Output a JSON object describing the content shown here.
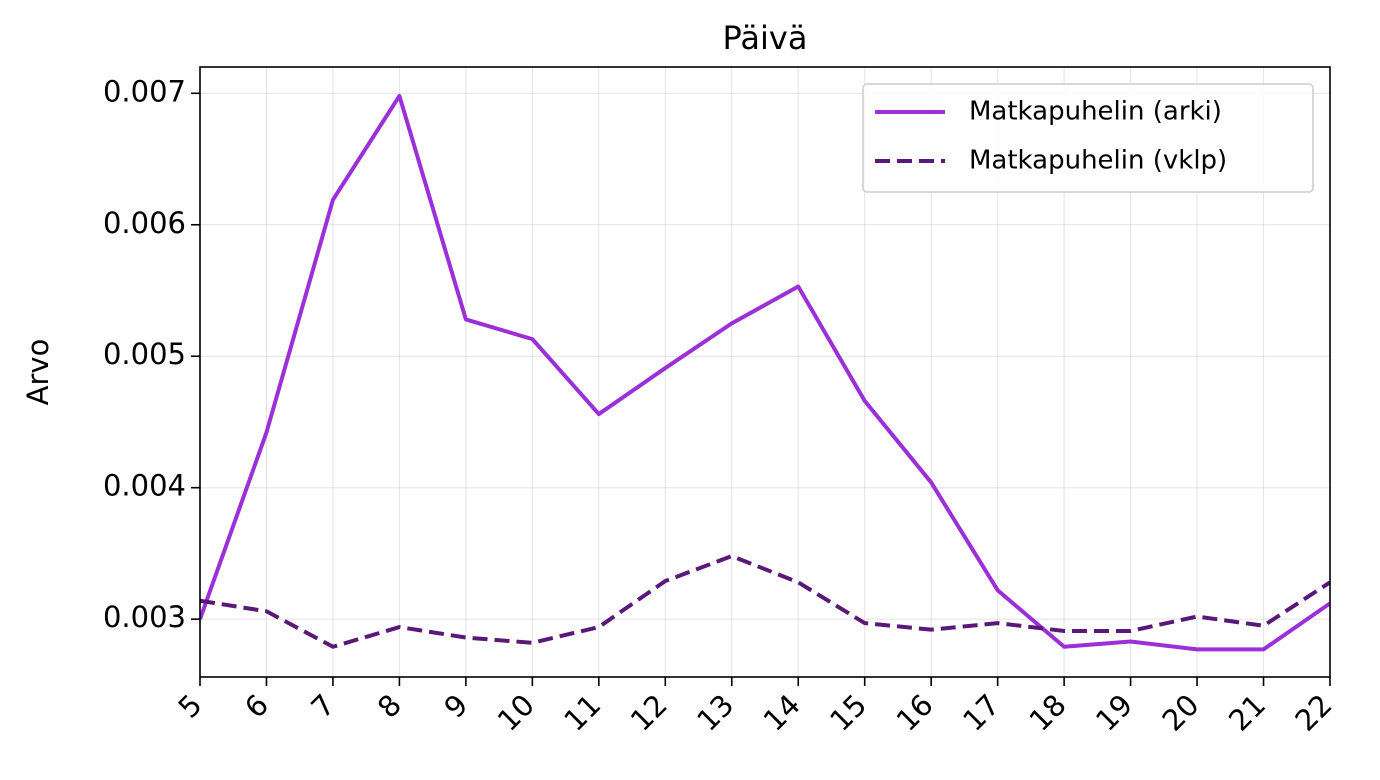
{
  "chart_data": {
    "type": "line",
    "title": "Päivä",
    "xlabel": "",
    "ylabel": "Arvo",
    "x": [
      5,
      6,
      7,
      8,
      9,
      10,
      11,
      12,
      13,
      14,
      15,
      16,
      17,
      18,
      19,
      20,
      21,
      22
    ],
    "xlim": [
      5,
      22
    ],
    "ylim": [
      0.00256,
      0.0072
    ],
    "yticks": [
      0.003,
      0.004,
      0.005,
      0.006,
      0.007
    ],
    "ytick_labels": [
      "0.003",
      "0.004",
      "0.005",
      "0.006",
      "0.007"
    ],
    "grid": true,
    "legend_position": "upper right",
    "series": [
      {
        "name": "Matkapuhelin (arki)",
        "style": "solid",
        "color": "#9b30d9",
        "values": [
          0.003,
          0.00442,
          0.00619,
          0.00698,
          0.00528,
          0.00513,
          0.00456,
          0.00491,
          0.00525,
          0.00553,
          0.00466,
          0.00404,
          0.00322,
          0.00279,
          0.00283,
          0.00277,
          0.00277,
          0.00312
        ]
      },
      {
        "name": "Matkapuhelin (vklp)",
        "style": "dashed",
        "color": "#5a1878",
        "values": [
          0.00314,
          0.00306,
          0.00279,
          0.00294,
          0.00286,
          0.00282,
          0.00294,
          0.00329,
          0.00348,
          0.00328,
          0.00297,
          0.00292,
          0.00297,
          0.00291,
          0.00291,
          0.00302,
          0.00295,
          0.00328
        ]
      }
    ]
  }
}
